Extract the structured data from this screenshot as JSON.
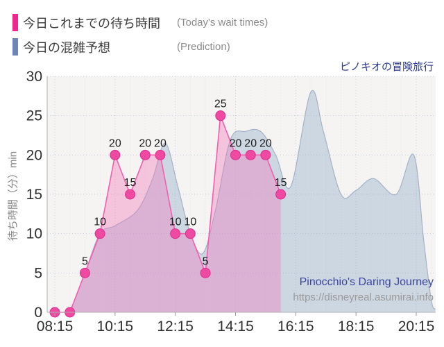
{
  "title": "ピノキオの冒険旅行",
  "legend": [
    {
      "swatch_color": "#f0268f",
      "label": "今日これまでの待ち時間",
      "sublabel": "(Today's wait times)"
    },
    {
      "swatch_color": "#6e86b5",
      "label": "今日の混雑予想",
      "sublabel": "(Prediction)"
    }
  ],
  "watermark": {
    "line1": "Pinocchio's Daring Journey",
    "line2": "https://disneyreal.asumirai.info"
  },
  "colors": {
    "actual_line": "#f25fae",
    "actual_fill": "rgba(243,118,187,0.38)",
    "actual_dot": "#ee4aa2",
    "actual_dot_border": "#db2f8d",
    "prediction_line": "#a3b2c6",
    "prediction_fill": "rgba(139,169,199,0.38)",
    "plot_background": "#f5f4f3",
    "grid_major": "#c5cddf",
    "grid_minor": "#e0e2e7",
    "grid_horizontal": "#c9cdd6",
    "axis": "#b0b0b0",
    "tick_text": "#2e2e2e"
  },
  "chart_data": {
    "type": "area",
    "x_axis": {
      "start": "08:00",
      "end": "20:55",
      "ticks": [
        "08:15",
        "10:15",
        "12:15",
        "14:15",
        "16:15",
        "18:15",
        "20:15"
      ],
      "minor_interval_minutes": 30
    },
    "y_axis": {
      "label": "待ち時間（分）min",
      "min": 0,
      "max": 30,
      "step": 5,
      "ticks": [
        0,
        5,
        10,
        15,
        20,
        25,
        30
      ]
    },
    "series": [
      {
        "name": "今日これまでの待ち時間",
        "name_en": "Today's wait times",
        "style": "straight-line-area-with-dots",
        "points": [
          {
            "t": "08:15",
            "v": 0
          },
          {
            "t": "08:45",
            "v": 0
          },
          {
            "t": "09:15",
            "v": 5
          },
          {
            "t": "09:45",
            "v": 10
          },
          {
            "t": "10:15",
            "v": 20
          },
          {
            "t": "10:45",
            "v": 15
          },
          {
            "t": "11:15",
            "v": 20
          },
          {
            "t": "11:45",
            "v": 20
          },
          {
            "t": "12:15",
            "v": 10
          },
          {
            "t": "12:45",
            "v": 10
          },
          {
            "t": "13:15",
            "v": 5
          },
          {
            "t": "13:45",
            "v": 25
          },
          {
            "t": "14:15",
            "v": 20
          },
          {
            "t": "14:45",
            "v": 20
          },
          {
            "t": "15:15",
            "v": 20
          },
          {
            "t": "15:45",
            "v": 15
          }
        ]
      },
      {
        "name": "今日の混雑予想",
        "name_en": "Prediction",
        "style": "smooth-area",
        "points": [
          {
            "t": "08:45",
            "v": 0
          },
          {
            "t": "09:15",
            "v": 5
          },
          {
            "t": "09:45",
            "v": 10
          },
          {
            "t": "10:15",
            "v": 11
          },
          {
            "t": "11:00",
            "v": 13
          },
          {
            "t": "11:30",
            "v": 17
          },
          {
            "t": "11:55",
            "v": 21.5
          },
          {
            "t": "12:20",
            "v": 16
          },
          {
            "t": "12:45",
            "v": 10
          },
          {
            "t": "13:10",
            "v": 7.5
          },
          {
            "t": "13:35",
            "v": 13
          },
          {
            "t": "14:05",
            "v": 22
          },
          {
            "t": "14:35",
            "v": 23
          },
          {
            "t": "15:05",
            "v": 23
          },
          {
            "t": "15:35",
            "v": 20
          },
          {
            "t": "16:05",
            "v": 16
          },
          {
            "t": "16:45",
            "v": 28
          },
          {
            "t": "17:10",
            "v": 23
          },
          {
            "t": "17:45",
            "v": 15
          },
          {
            "t": "18:15",
            "v": 15.5
          },
          {
            "t": "18:50",
            "v": 17
          },
          {
            "t": "19:35",
            "v": 15
          },
          {
            "t": "20:10",
            "v": 20
          },
          {
            "t": "20:30",
            "v": 9
          },
          {
            "t": "20:45",
            "v": 1.5
          },
          {
            "t": "20:53",
            "v": 0.4
          }
        ]
      }
    ]
  }
}
